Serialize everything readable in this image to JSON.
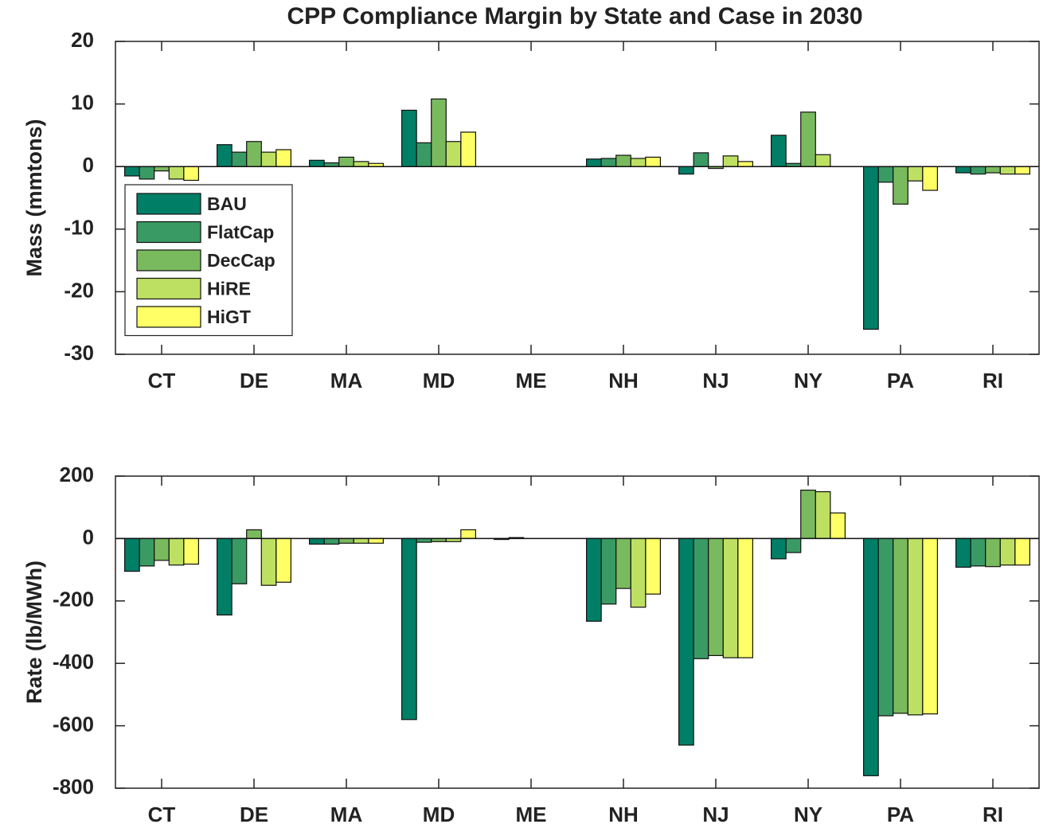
{
  "chart_data": [
    {
      "type": "bar",
      "title": "CPP Compliance Margin by State and Case in 2030",
      "ylabel": "Mass (mmtons)",
      "categories": [
        "CT",
        "DE",
        "MA",
        "MD",
        "ME",
        "NH",
        "NJ",
        "NY",
        "PA",
        "RI"
      ],
      "series": [
        {
          "name": "BAU",
          "color": "#007f66",
          "values": [
            -1.5,
            3.5,
            1,
            9,
            0,
            1.2,
            -1.2,
            5,
            -26,
            -1
          ]
        },
        {
          "name": "FlatCap",
          "color": "#3a9a64",
          "values": [
            -2,
            2.3,
            0.6,
            3.8,
            0,
            1.3,
            2.2,
            0.5,
            -2.5,
            -1.2
          ]
        },
        {
          "name": "DecCap",
          "color": "#7aba5e",
          "values": [
            -0.7,
            4,
            1.5,
            10.8,
            0,
            1.8,
            -0.3,
            8.7,
            -6,
            -1
          ]
        },
        {
          "name": "HiRE",
          "color": "#bde063",
          "values": [
            -2,
            2.3,
            0.8,
            4,
            0,
            1.3,
            1.7,
            1.9,
            -2.3,
            -1.2
          ]
        },
        {
          "name": "HiGT",
          "color": "#ffff66",
          "values": [
            -2.2,
            2.7,
            0.5,
            5.5,
            0,
            1.5,
            0.8,
            0,
            -3.8,
            -1.2
          ]
        }
      ],
      "ylim": [
        -30,
        20
      ],
      "yticks": [
        -30,
        -20,
        -10,
        0,
        10,
        20
      ],
      "legend": "left"
    },
    {
      "type": "bar",
      "ylabel": "Rate (lb/MWh)",
      "categories": [
        "CT",
        "DE",
        "MA",
        "MD",
        "ME",
        "NH",
        "NJ",
        "NY",
        "PA",
        "RI"
      ],
      "series": [
        {
          "color": "#007f66",
          "values": [
            -105,
            -245,
            -18,
            -580,
            -3,
            -265,
            -662,
            -65,
            -760,
            -92
          ]
        },
        {
          "color": "#3a9a64",
          "values": [
            -88,
            -145,
            -18,
            -12,
            3,
            -210,
            -385,
            -45,
            -568,
            -88
          ]
        },
        {
          "color": "#7aba5e",
          "values": [
            -70,
            28,
            -15,
            -10,
            0,
            -160,
            -375,
            155,
            -560,
            -90
          ]
        },
        {
          "color": "#bde063",
          "values": [
            -85,
            -150,
            -15,
            -10,
            0,
            -220,
            -382,
            150,
            -565,
            -85
          ]
        },
        {
          "color": "#ffff66",
          "values": [
            -82,
            -140,
            -15,
            28,
            0,
            -178,
            -382,
            82,
            -562,
            -85
          ]
        }
      ],
      "ylim": [
        -800,
        200
      ],
      "yticks": [
        -800,
        -600,
        -400,
        -200,
        0,
        200
      ]
    }
  ]
}
